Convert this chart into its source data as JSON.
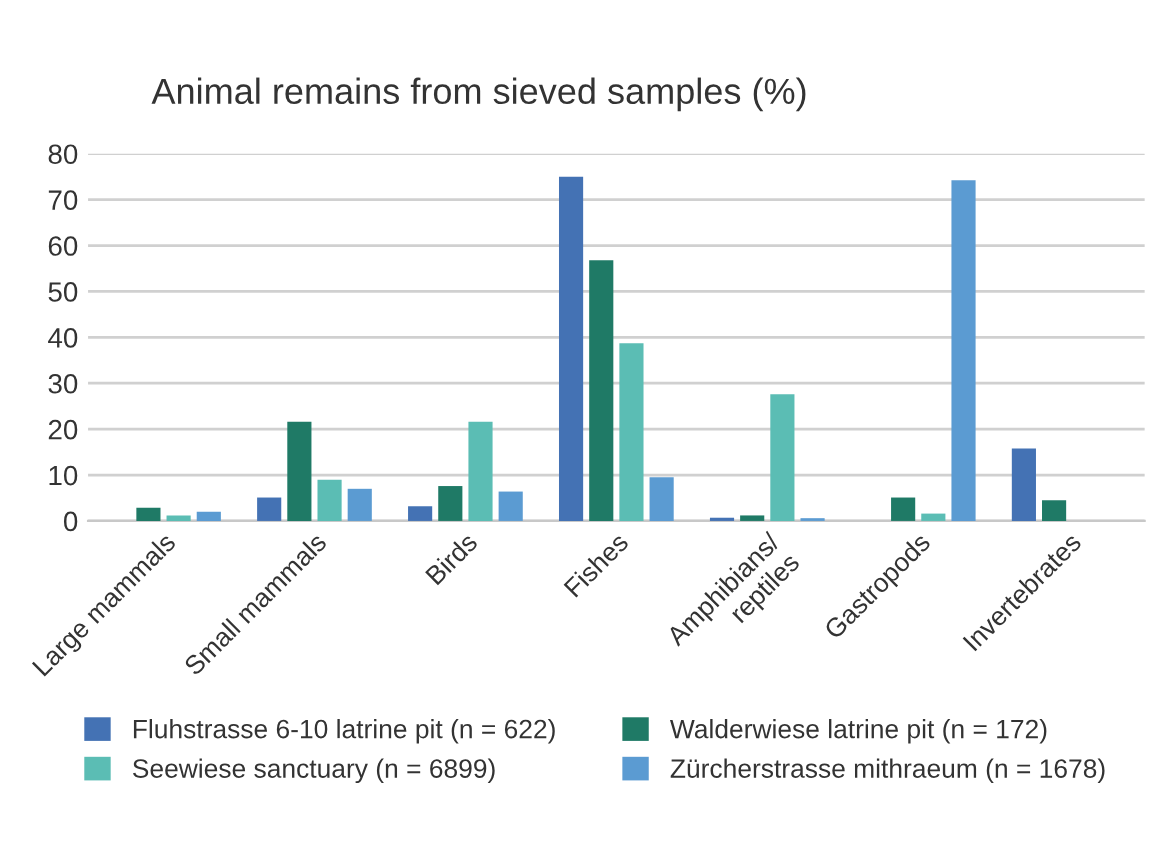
{
  "chart_data": {
    "type": "bar",
    "title": "Animal remains from sieved samples (%)",
    "categories": [
      "Large mammals",
      "Small mammals",
      "Birds",
      "Fishes",
      "Amphibians/\nreptiles",
      "Gastropods",
      "Invertebrates"
    ],
    "series": [
      {
        "name": "Fluhstrasse 6-10 latrine pit (n = 622)",
        "color": "#4472b4",
        "values": [
          0,
          5.1,
          3.2,
          75.0,
          0.7,
          0,
          15.8
        ]
      },
      {
        "name": "Walderwiese latrine pit (n = 172)",
        "color": "#1f7a66",
        "values": [
          2.9,
          21.6,
          7.6,
          56.8,
          1.2,
          5.1,
          4.5
        ]
      },
      {
        "name": "Seewiese sanctuary (n = 6899)",
        "color": "#5bbdb4",
        "values": [
          1.2,
          9.0,
          21.6,
          38.7,
          27.6,
          1.6,
          0
        ]
      },
      {
        "name": "Zürcherstrasse mithraeum (n = 1678)",
        "color": "#5b9bd2",
        "values": [
          2.0,
          7.0,
          6.4,
          9.5,
          0.6,
          74.2,
          0
        ]
      }
    ],
    "ylim": [
      0,
      80
    ],
    "yticks": [
      0,
      10,
      20,
      30,
      40,
      50,
      60,
      70,
      80
    ],
    "grid": "y",
    "legend": "bottom"
  }
}
